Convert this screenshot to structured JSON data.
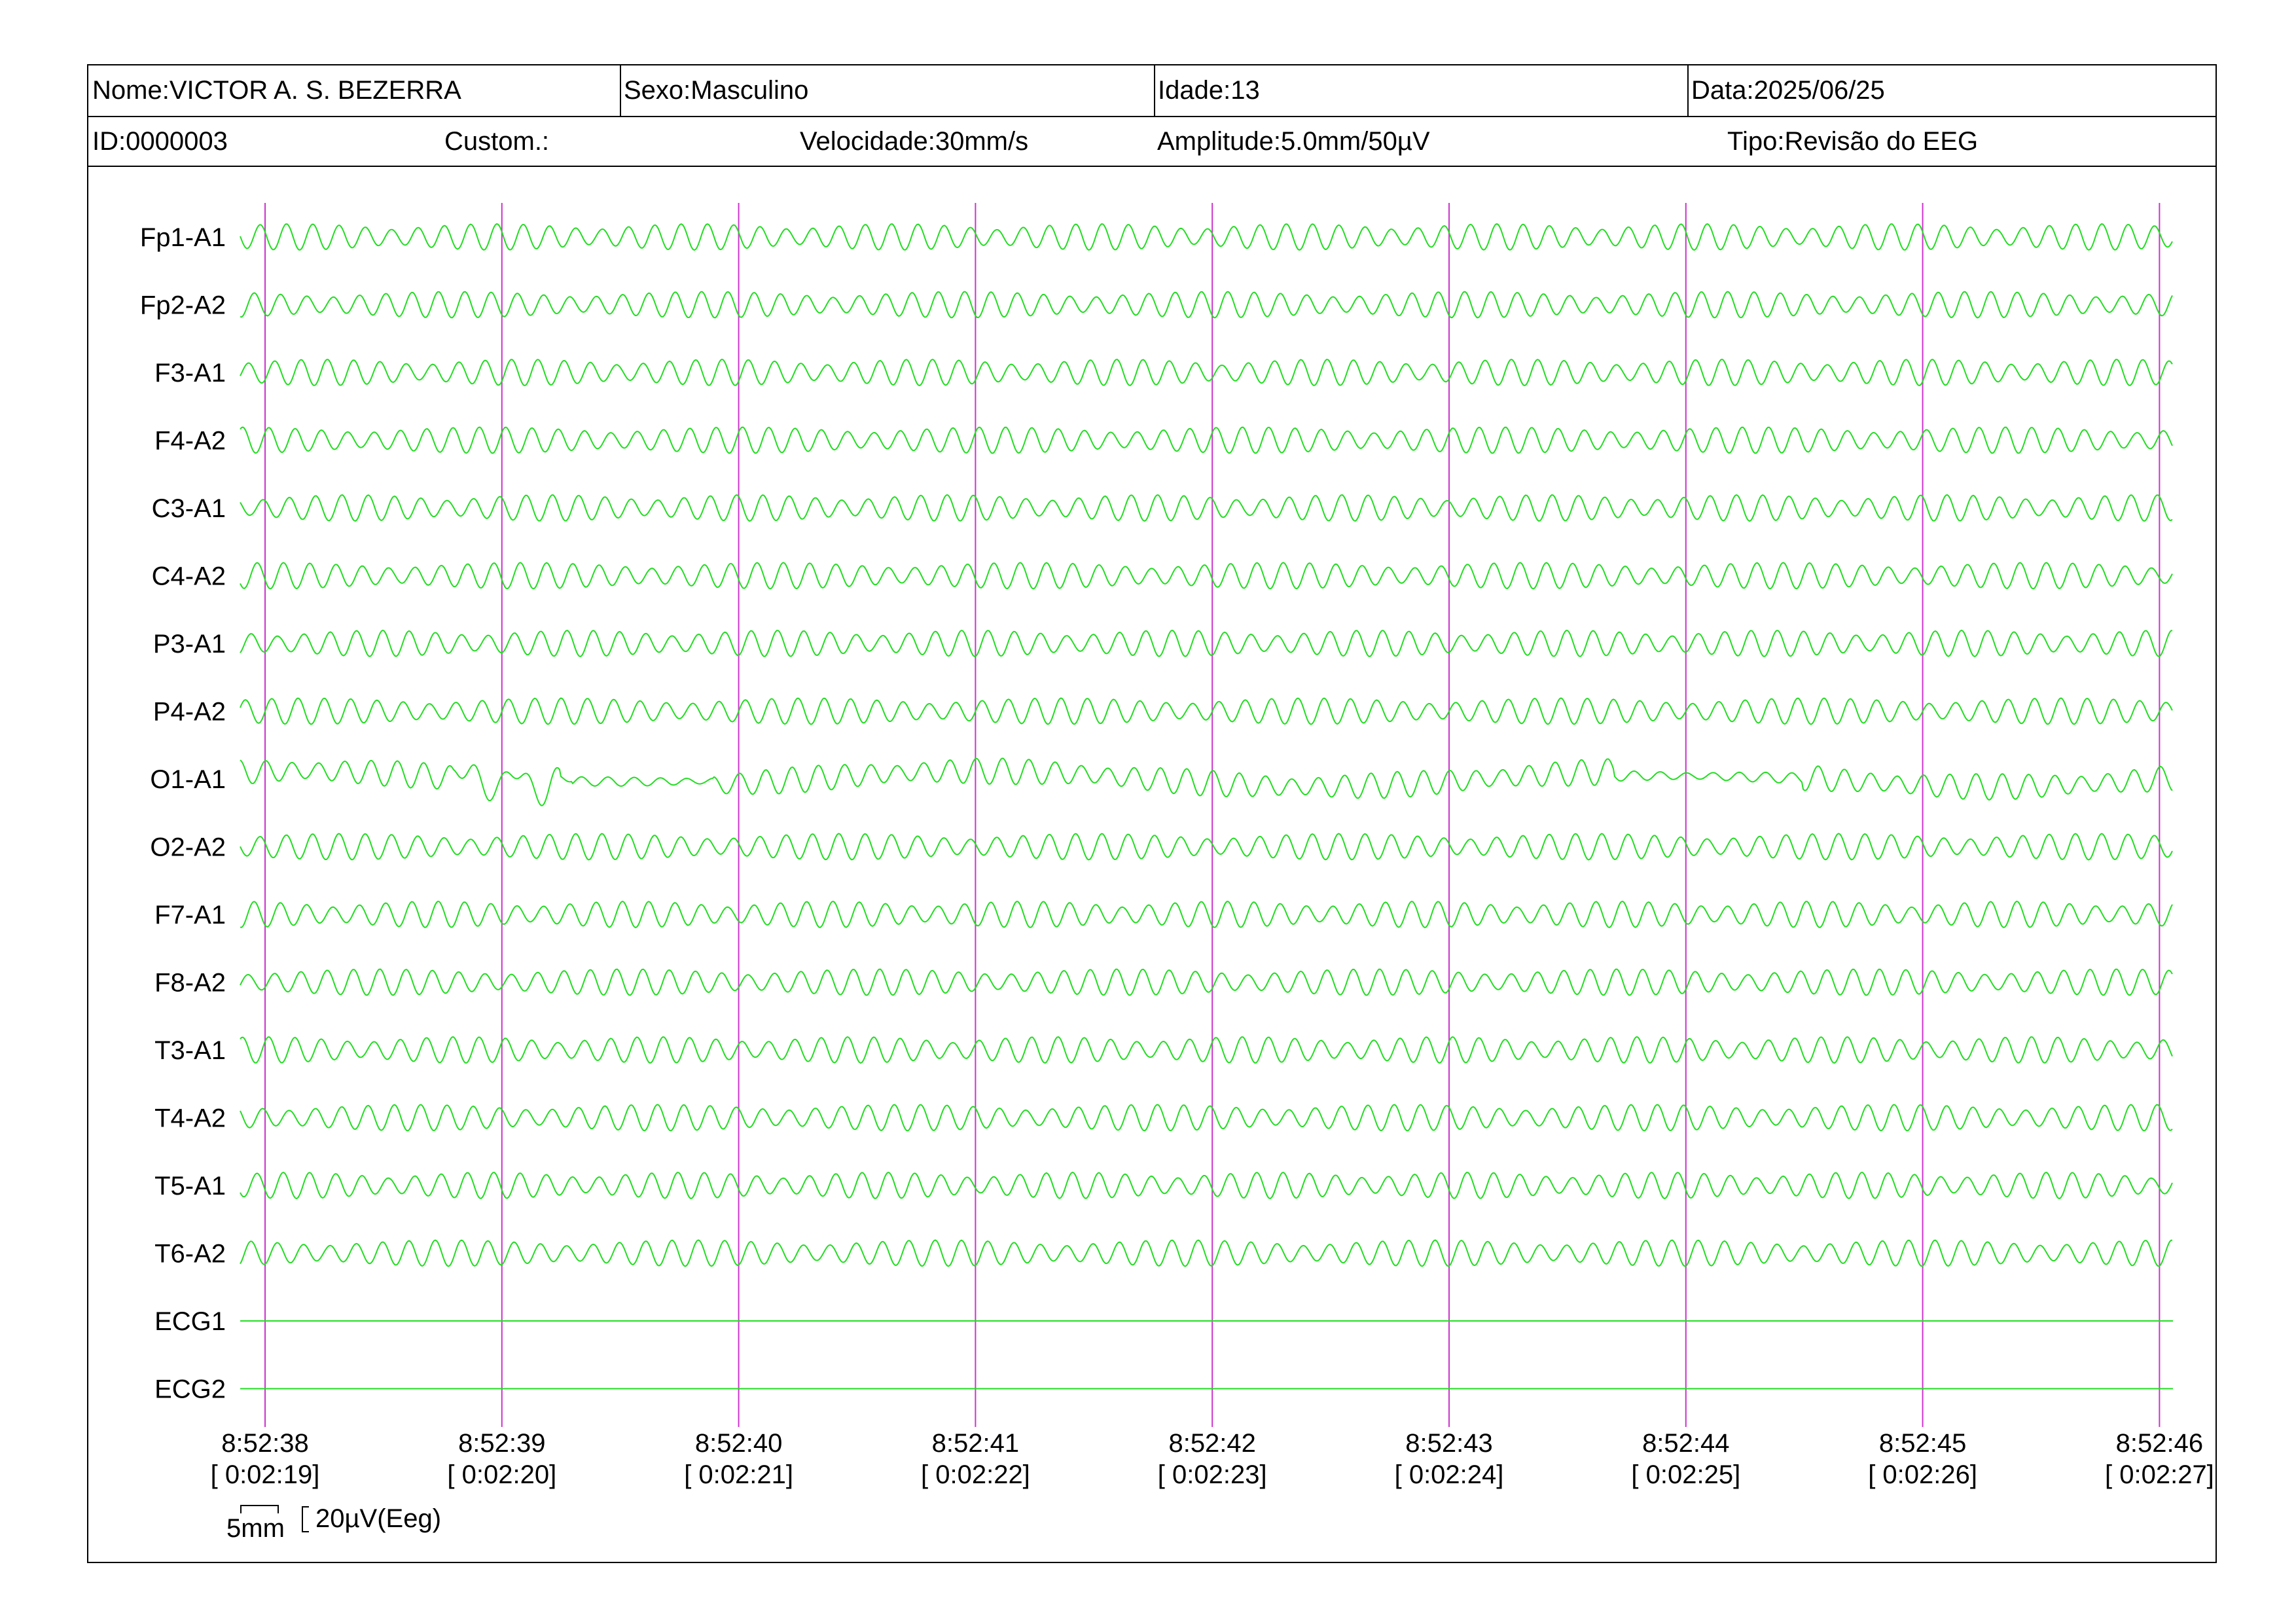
{
  "header": {
    "name": "Nome:VICTOR A. S. BEZERRA",
    "sex": "Sexo:Masculino",
    "age": "Idade:13",
    "date": "Data:2025/06/25",
    "id": "ID:0000003",
    "custom": "Custom.:",
    "speed": "Velocidade:30mm/s",
    "amplitude": "Amplitude:5.0mm/50µV",
    "type": "Tipo:Revisão do EEG"
  },
  "scale": {
    "time_label": "5mm",
    "amp_label": "20µV(Eeg)"
  },
  "colors": {
    "trace": "#22dd22",
    "second_marker": "#cc33cc",
    "border": "#000000"
  },
  "chart_data": {
    "type": "line",
    "channels": [
      "Fp1-A1",
      "Fp2-A2",
      "F3-A1",
      "F4-A2",
      "C3-A1",
      "C4-A2",
      "P3-A1",
      "P4-A2",
      "O1-A1",
      "O2-A2",
      "F7-A1",
      "F8-A2",
      "T3-A1",
      "T4-A2",
      "T5-A1",
      "T6-A2",
      "ECG1",
      "ECG2"
    ],
    "flat_channels": [
      "ECG1",
      "ECG2"
    ],
    "time_ticks": [
      {
        "clock": "8:52:38",
        "elapsed": "[ 0:02:19]"
      },
      {
        "clock": "8:52:39",
        "elapsed": "[ 0:02:20]"
      },
      {
        "clock": "8:52:40",
        "elapsed": "[ 0:02:21]"
      },
      {
        "clock": "8:52:41",
        "elapsed": "[ 0:02:22]"
      },
      {
        "clock": "8:52:42",
        "elapsed": "[ 0:02:23]"
      },
      {
        "clock": "8:52:43",
        "elapsed": "[ 0:02:24]"
      },
      {
        "clock": "8:52:44",
        "elapsed": "[ 0:02:25]"
      },
      {
        "clock": "8:52:45",
        "elapsed": "[ 0:02:26]"
      },
      {
        "clock": "8:52:46",
        "elapsed": "[ 0:02:27]"
      }
    ],
    "window_seconds": 8,
    "alpha_frequency_hz": 9
  }
}
